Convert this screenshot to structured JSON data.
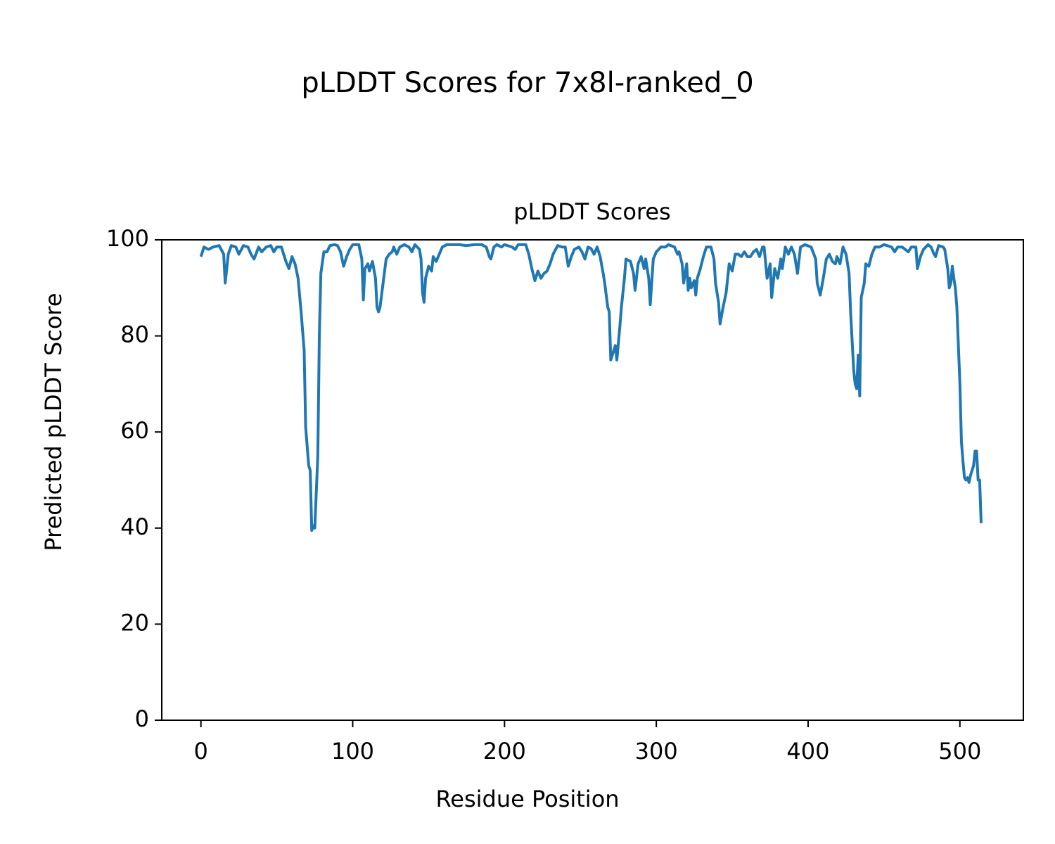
{
  "chart_data": {
    "type": "line",
    "title": "pLDDT Scores for 7x8l-ranked_0",
    "subtitle": "pLDDT Scores",
    "x_label": "Residue Position",
    "y_label": "Predicted pLDDT Score",
    "color": "#1f77b4",
    "xlim": [
      -25.8,
      541.8
    ],
    "ylim": [
      0,
      100
    ],
    "xticks": [
      0,
      100,
      200,
      300,
      400,
      500
    ],
    "yticks": [
      0,
      20,
      40,
      60,
      80,
      100
    ],
    "grid": false,
    "x": [
      0,
      2,
      5,
      8,
      12,
      15,
      16,
      18,
      20,
      23,
      25,
      28,
      31,
      33,
      35,
      38,
      40,
      43,
      46,
      48,
      50,
      53,
      56,
      58,
      60,
      62,
      64,
      66,
      68,
      69,
      71,
      72,
      73,
      74,
      75,
      77,
      78,
      79,
      81,
      83,
      85,
      88,
      90,
      92,
      94,
      96,
      98,
      100,
      104,
      106,
      107,
      108,
      110,
      111,
      113,
      115,
      116,
      117,
      118,
      120,
      122,
      124,
      126,
      127,
      129,
      131,
      134,
      137,
      139,
      141,
      144,
      145,
      146,
      147,
      148,
      150,
      152,
      153,
      155,
      157,
      159,
      162,
      170,
      175,
      180,
      185,
      188,
      190,
      191,
      193,
      195,
      198,
      200,
      205,
      207,
      209,
      214,
      216,
      218,
      220,
      222,
      224,
      226,
      228,
      230,
      232,
      235,
      238,
      240,
      242,
      244,
      246,
      249,
      251,
      253,
      255,
      257,
      259,
      261,
      263,
      265,
      266,
      268,
      269,
      270,
      272,
      273,
      274,
      276,
      277,
      279,
      280,
      283,
      285,
      286,
      288,
      290,
      292,
      293,
      295,
      296,
      298,
      300,
      303,
      306,
      308,
      312,
      314,
      315,
      317,
      318,
      320,
      321,
      322,
      323,
      325,
      326,
      327,
      329,
      331,
      333,
      336,
      338,
      339,
      341,
      342,
      344,
      346,
      348,
      350,
      352,
      354,
      356,
      358,
      360,
      362,
      364,
      366,
      368,
      370,
      371,
      373,
      375,
      376,
      378,
      380,
      382,
      383,
      385,
      387,
      389,
      391,
      392,
      393,
      395,
      398,
      402,
      405,
      406,
      408,
      410,
      412,
      414,
      416,
      418,
      419,
      421,
      423,
      425,
      427,
      428,
      430,
      431,
      432,
      433,
      434,
      435,
      437,
      438,
      440,
      442,
      444,
      447,
      450,
      455,
      457,
      459,
      462,
      466,
      468,
      471,
      472,
      474,
      476,
      479,
      481,
      483,
      484,
      486,
      489,
      490,
      492,
      493,
      494,
      495,
      496,
      497,
      498,
      499,
      500,
      501,
      502,
      503,
      504,
      505,
      506,
      507,
      509,
      510,
      511,
      512,
      513,
      514
    ],
    "values": [
      96.5,
      98.5,
      98,
      98.5,
      98.8,
      97,
      91,
      97,
      98.8,
      98.5,
      97,
      98.8,
      98.5,
      97,
      96,
      98.5,
      97.5,
      98.5,
      98.8,
      97.5,
      98.5,
      98.5,
      95.5,
      94,
      96.5,
      95,
      92,
      85,
      77,
      61,
      53,
      52,
      39.5,
      40.5,
      40,
      55,
      80,
      93,
      97.5,
      97.5,
      98.8,
      99,
      98.8,
      97.5,
      94.5,
      96.5,
      98,
      99,
      99,
      96,
      87.5,
      94,
      95,
      93.5,
      95.5,
      92,
      86,
      85,
      86,
      91,
      96,
      97,
      97.5,
      98.5,
      97,
      98.5,
      99,
      98.5,
      97.5,
      99,
      98,
      96,
      89,
      87,
      92,
      94.5,
      93.5,
      96.5,
      95.5,
      97,
      98.5,
      99,
      99,
      98.8,
      99,
      99,
      98.5,
      96.5,
      96,
      98.5,
      99,
      98.5,
      99,
      98.5,
      98,
      99,
      99,
      97,
      94,
      91.5,
      93.5,
      92,
      93,
      93.5,
      95,
      97,
      98.8,
      98.5,
      98.5,
      94.5,
      96.5,
      98,
      98.5,
      97.5,
      96,
      98.5,
      98.2,
      97,
      98.5,
      96.5,
      93,
      91,
      86,
      85,
      75,
      77,
      78,
      75,
      82,
      86,
      92,
      96,
      95.5,
      93,
      89.5,
      95,
      96.5,
      94,
      96,
      92,
      86.5,
      96,
      97.5,
      98.5,
      98.5,
      99,
      98.5,
      97,
      97.5,
      95,
      91,
      95,
      89.5,
      92,
      90,
      91.5,
      88.5,
      92,
      94,
      96.5,
      98.5,
      98.5,
      96,
      91,
      87,
      82.5,
      86,
      89,
      95,
      93.5,
      97,
      97,
      96.5,
      97.5,
      96.5,
      96.5,
      97.5,
      98,
      96.5,
      98.5,
      98.5,
      92,
      95,
      88,
      94,
      92,
      96,
      94,
      98.5,
      97,
      98.5,
      97,
      95,
      93,
      98.5,
      99,
      98.5,
      96,
      91,
      88.5,
      92,
      96,
      97,
      95.5,
      95,
      96.5,
      95,
      98.5,
      97,
      93,
      85,
      73,
      70,
      69,
      76,
      67.5,
      88,
      91,
      95,
      94.5,
      97,
      98.5,
      98.5,
      99,
      98.5,
      97.5,
      98.5,
      98.5,
      97.5,
      98.5,
      98.5,
      94,
      96.5,
      98,
      99,
      98.5,
      97,
      96.5,
      98.8,
      98.5,
      98,
      94,
      90,
      91,
      94.5,
      92,
      90,
      86,
      78,
      70,
      58,
      54,
      50.5,
      50,
      50.5,
      49.5,
      51,
      53,
      56,
      56,
      50,
      50,
      41
    ]
  }
}
